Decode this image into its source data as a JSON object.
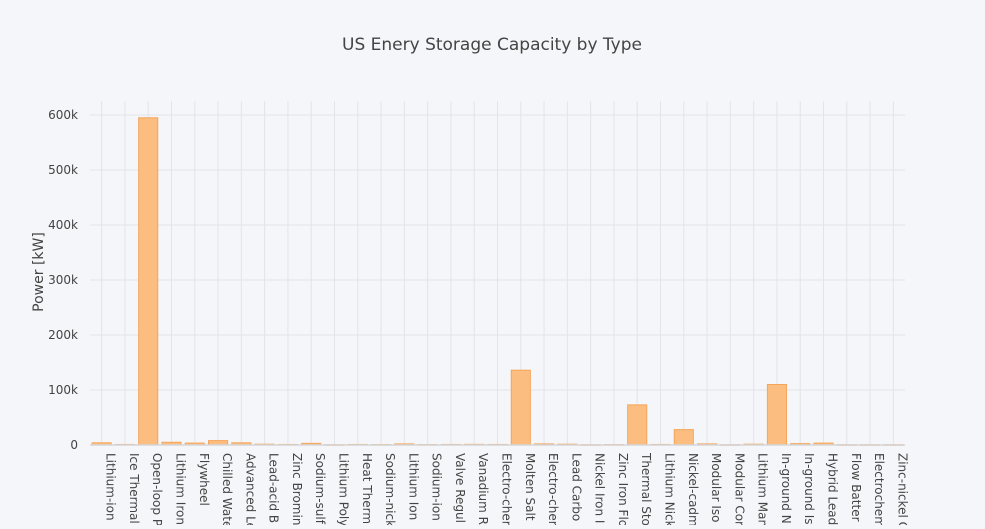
{
  "chart_data": {
    "type": "bar",
    "title": "US Enery Storage Capacity by Type",
    "xlabel": "",
    "ylabel": "Power [kW]",
    "ylim": [
      0,
      625000
    ],
    "yticks": [
      {
        "value": 0,
        "label": "0"
      },
      {
        "value": 100000,
        "label": "100k"
      },
      {
        "value": 200000,
        "label": "200k"
      },
      {
        "value": 300000,
        "label": "300k"
      },
      {
        "value": 400000,
        "label": "400k"
      },
      {
        "value": 500000,
        "label": "500k"
      },
      {
        "value": 600000,
        "label": "600k"
      }
    ],
    "grid": true,
    "bar_color": "#fcbd80",
    "bar_edge_color": "#f5a55a",
    "categories": [
      "Lithium-ion",
      "Ice Thermal",
      "Open-loop P",
      "Lithium Iron",
      "Flywheel",
      "Chilled Wate",
      "Advanced Le",
      "Lead-acid B",
      "Zinc Bromin",
      "Sodium-sulf",
      "Lithium Poly",
      "Heat Therm",
      "Sodium-nick",
      "Lithium Ion",
      "Sodium-ion",
      "Valve Regul",
      "Vanadium R",
      "Electro-cher",
      "Molten Salt",
      "Electro-cher",
      "Lead Carbo",
      "Nickel Iron I",
      "Zinc Iron Flo",
      "Thermal Sto",
      "Lithium Nick",
      "Nickel-cadm",
      "Modular Iso",
      "Modular Cor",
      "Lithium Man",
      "In-ground N",
      "In-ground Is",
      "Hybrid Lead",
      "Flow Batter",
      "Electrochem",
      "Zinc-nickel C"
    ],
    "values": [
      4000,
      1000,
      595000,
      5000,
      3500,
      8000,
      4000,
      1500,
      1000,
      3000,
      500,
      1000,
      800,
      2000,
      800,
      1000,
      1200,
      1000,
      136000,
      2000,
      1500,
      500,
      700,
      73000,
      1000,
      28000,
      2000,
      500,
      1500,
      110000,
      2500,
      3500,
      500,
      500,
      500
    ]
  }
}
